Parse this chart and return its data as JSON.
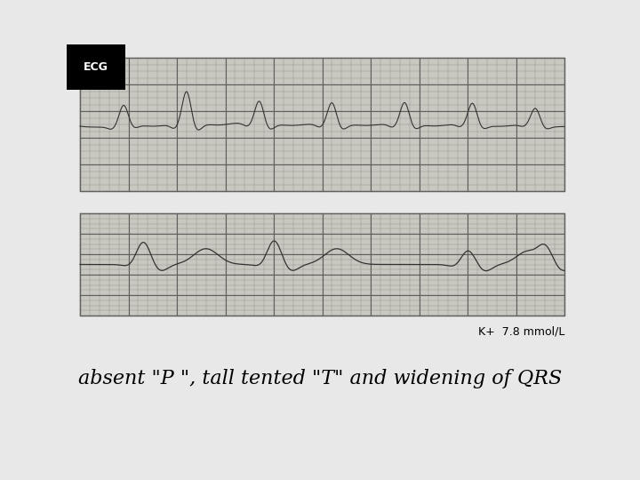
{
  "background_color": "#f0f0f0",
  "ecg_strip1_bg": "#c8c8c0",
  "ecg_strip2_bg": "#c8c8c0",
  "grid_minor_color": "#909088",
  "grid_major_color": "#606060",
  "ecg_line_color": "#333333",
  "ecg_label": "ECG",
  "kplus_label": "K+  7.8 mmol/L",
  "bottom_text": "absent \"P \", tall tented \"T\" and widening of QRS",
  "fig_bg": "#e8e8e8"
}
